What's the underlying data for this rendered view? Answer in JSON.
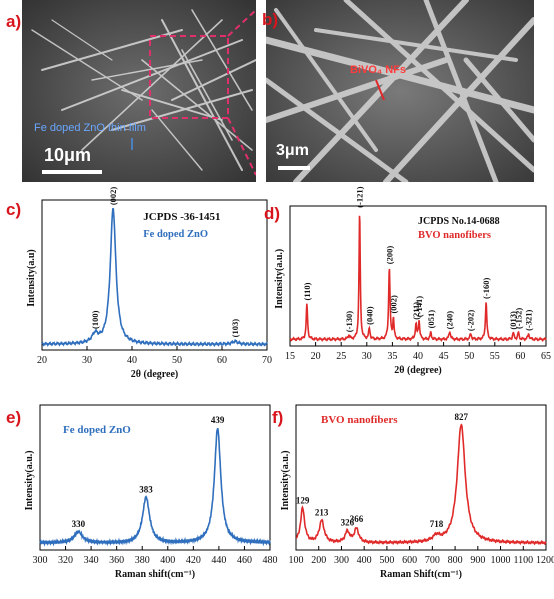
{
  "panels": {
    "a": {
      "letter": "a)",
      "annotation": "Fe doped ZnO thin film",
      "scale_bar": "10μm"
    },
    "b": {
      "letter": "b)",
      "annotation": "BiVO₄ NFs",
      "scale_bar": "3μm"
    },
    "c": {
      "letter": "c)"
    },
    "d": {
      "letter": "d)"
    },
    "e": {
      "letter": "e)"
    },
    "f": {
      "letter": "f)"
    }
  },
  "colors": {
    "blue": "#2f6fbd",
    "red": "#e02a2a",
    "letter": "#d8141c",
    "pink": "#e0306a"
  },
  "chart_data": [
    {
      "id": "c",
      "type": "line",
      "title": "JCPDS -36-1451",
      "subtitle": "Fe doped ZnO",
      "xlabel": "2θ (degree)",
      "ylabel": "Intensity(a.u)",
      "xlim": [
        20,
        70
      ],
      "xticks": [
        20,
        30,
        40,
        50,
        60,
        70
      ],
      "ylim": [
        0,
        1.05
      ],
      "color": "#2f6fbd",
      "peaks": [
        {
          "x": 35.8,
          "h": 0.95,
          "w": 0.75,
          "label": "(002)"
        },
        {
          "x": 31.8,
          "h": 0.06,
          "w": 0.8,
          "label": "(100)"
        },
        {
          "x": 62.9,
          "h": 0.02,
          "w": 0.8,
          "label": "(103)"
        }
      ],
      "baseline": 0.04
    },
    {
      "id": "d",
      "type": "line",
      "title": "JCPDS No.14-0688",
      "subtitle": "BVO nanofibers",
      "xlabel": "2θ (degree)",
      "ylabel": "Intensity(a.u.)",
      "xlim": [
        15,
        65
      ],
      "xticks": [
        15,
        20,
        25,
        30,
        35,
        40,
        45,
        50,
        55,
        60,
        65
      ],
      "ylim": [
        0,
        1.05
      ],
      "color": "#e02a2a",
      "peaks": [
        {
          "x": 18.3,
          "h": 0.26,
          "w": 0.16,
          "label": "(110)"
        },
        {
          "x": 26.5,
          "h": 0.03,
          "w": 0.18,
          "label": "(-130)"
        },
        {
          "x": 28.6,
          "h": 0.96,
          "w": 0.14,
          "label": "(-121)"
        },
        {
          "x": 30.5,
          "h": 0.08,
          "w": 0.16,
          "label": "(040)"
        },
        {
          "x": 34.4,
          "h": 0.54,
          "w": 0.16,
          "label": "(200)"
        },
        {
          "x": 35.2,
          "h": 0.15,
          "w": 0.14,
          "label": "(002)"
        },
        {
          "x": 39.6,
          "h": 0.11,
          "w": 0.16,
          "label": "(211)"
        },
        {
          "x": 40.2,
          "h": 0.14,
          "w": 0.16,
          "label": "(-141)"
        },
        {
          "x": 42.5,
          "h": 0.05,
          "w": 0.16,
          "label": "(051)"
        },
        {
          "x": 46.2,
          "h": 0.06,
          "w": 0.18,
          "label": "(240)"
        },
        {
          "x": 50.3,
          "h": 0.04,
          "w": 0.18,
          "label": "(-202)"
        },
        {
          "x": 53.3,
          "h": 0.28,
          "w": 0.16,
          "label": "(-160)"
        },
        {
          "x": 58.6,
          "h": 0.05,
          "w": 0.16,
          "label": "(013)"
        },
        {
          "x": 59.6,
          "h": 0.05,
          "w": 0.16,
          "label": "(-152)"
        },
        {
          "x": 61.6,
          "h": 0.04,
          "w": 0.18,
          "label": "(-321)"
        }
      ],
      "baseline": 0.05
    },
    {
      "id": "e",
      "type": "line",
      "title": "Fe doped ZnO",
      "xlabel": "Raman shift(cm⁻¹)",
      "ylabel": "Intensity(a.u.)",
      "xlim": [
        300,
        480
      ],
      "xticks": [
        300,
        320,
        340,
        360,
        380,
        400,
        420,
        440,
        460,
        480
      ],
      "ylim": [
        0,
        1.05
      ],
      "color": "#2f6fbd",
      "peaks": [
        {
          "x": 330,
          "h": 0.08,
          "w": 4.0,
          "label": "330"
        },
        {
          "x": 383,
          "h": 0.33,
          "w": 3.3,
          "label": "383"
        },
        {
          "x": 439,
          "h": 0.83,
          "w": 3.0,
          "label": "439"
        }
      ],
      "baseline": 0.05
    },
    {
      "id": "f",
      "type": "line",
      "title": "BVO nanofibers",
      "xlabel": "Raman Shift(cm⁻¹)",
      "ylabel": "Intensity(a.u.)",
      "xlim": [
        100,
        1200
      ],
      "xticks": [
        100,
        200,
        300,
        400,
        500,
        600,
        700,
        800,
        900,
        1000,
        1100,
        1200
      ],
      "ylim": [
        0,
        1.05
      ],
      "color": "#e02a2a",
      "peaks": [
        {
          "x": 129,
          "h": 0.25,
          "w": 11,
          "label": "129"
        },
        {
          "x": 213,
          "h": 0.16,
          "w": 13,
          "label": "213"
        },
        {
          "x": 326,
          "h": 0.08,
          "w": 12,
          "label": "326"
        },
        {
          "x": 366,
          "h": 0.1,
          "w": 12,
          "label": "366"
        },
        {
          "x": 718,
          "h": 0.04,
          "w": 18,
          "label": "718"
        },
        {
          "x": 827,
          "h": 0.86,
          "w": 21,
          "label": "827"
        }
      ],
      "baseline": 0.05
    }
  ]
}
